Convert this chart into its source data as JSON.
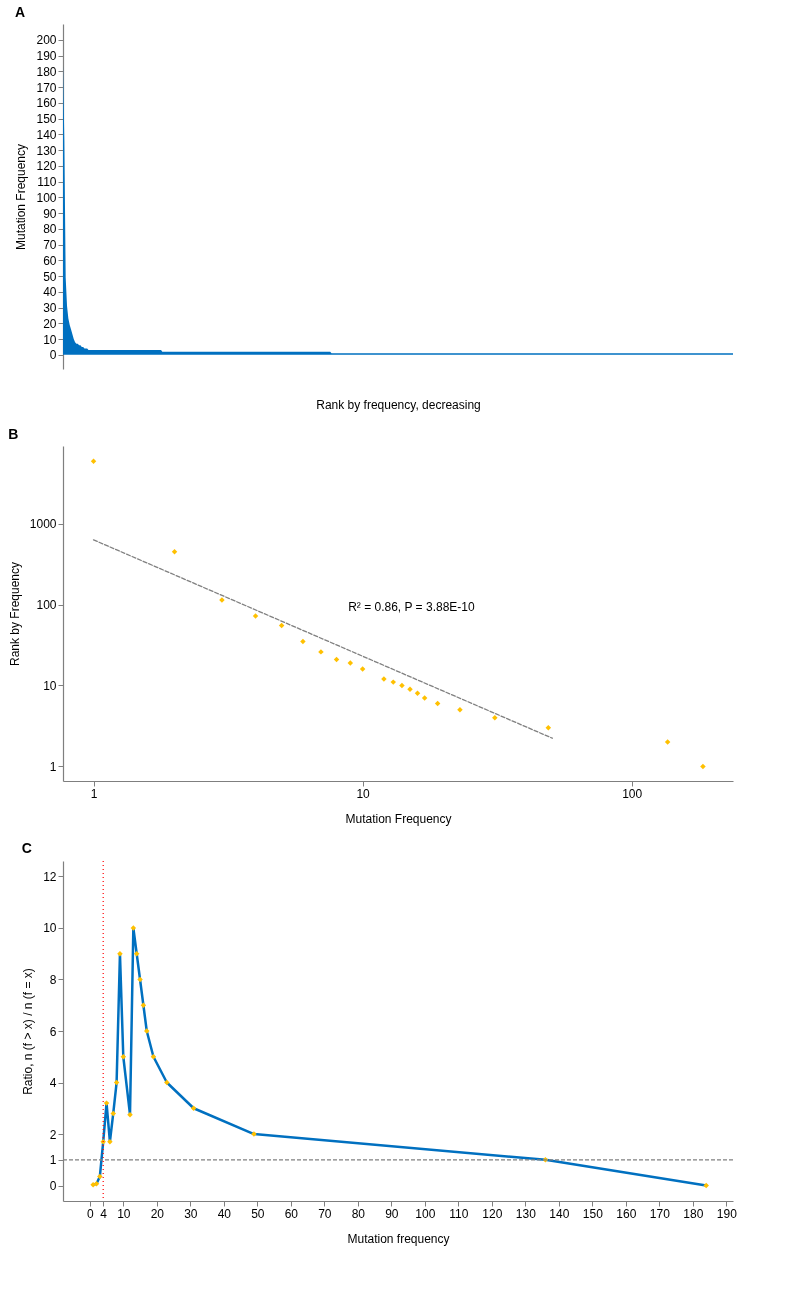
{
  "chart_data": [
    {
      "title": "A",
      "type": "area",
      "xlabel": "Rank by frequency, decreasing",
      "ylabel": "Mutation Frequency",
      "color": "#0070c0",
      "tick_labels": "y",
      "categories": [
        null,
        null,
        null,
        null,
        null,
        null,
        null,
        null,
        null,
        null,
        null,
        null,
        null,
        null,
        null,
        null,
        null,
        null,
        null,
        null,
        null,
        null,
        null,
        null,
        null,
        null,
        null,
        null,
        null,
        null,
        null,
        null,
        null,
        null,
        null,
        null,
        null,
        null,
        null,
        null,
        null,
        null,
        null,
        null,
        null,
        null,
        null,
        null,
        null,
        null,
        null,
        null,
        null,
        null,
        null,
        null,
        null,
        null,
        null,
        null,
        null,
        null,
        null,
        null,
        null,
        null,
        null,
        null,
        null,
        null,
        null,
        null,
        null,
        null,
        null,
        null,
        null,
        null,
        null,
        null,
        null,
        null,
        null,
        null,
        null,
        null,
        null,
        null,
        null,
        null,
        null,
        null,
        null,
        null,
        null,
        null,
        null,
        null,
        null,
        null,
        null,
        null,
        null,
        null,
        null,
        null,
        null,
        null,
        null,
        null,
        null,
        null,
        null,
        null,
        null,
        null,
        null,
        null,
        null,
        null,
        null,
        null,
        null,
        null,
        null,
        null,
        null,
        null,
        null,
        null,
        null,
        null,
        null,
        null,
        null,
        null,
        null,
        null,
        null,
        null,
        null,
        null,
        null,
        null,
        null,
        null,
        null,
        null,
        null,
        null,
        null,
        null,
        null,
        null,
        null,
        null,
        null,
        null,
        null,
        null,
        null,
        null,
        null,
        null,
        null,
        null,
        null,
        null,
        null,
        null,
        null,
        null,
        null,
        null,
        null,
        null,
        null,
        null,
        null,
        null,
        null,
        null,
        null,
        null,
        null,
        null,
        null,
        null,
        null,
        null,
        null,
        null,
        null,
        null,
        null,
        null,
        null,
        null,
        null,
        null,
        null,
        null,
        null,
        null,
        null,
        null,
        null,
        null,
        null,
        null,
        null,
        null,
        null,
        null,
        null,
        null,
        null,
        null,
        null,
        null,
        null,
        null,
        null,
        null,
        null,
        null,
        null,
        null,
        null,
        null,
        null,
        null,
        null,
        null,
        null,
        null,
        null,
        null,
        null,
        null,
        null,
        null,
        null,
        null,
        null,
        null,
        null,
        null,
        null,
        null,
        null,
        null,
        null,
        null,
        null,
        null,
        null,
        null,
        null,
        null,
        null,
        null,
        null,
        null,
        null,
        null,
        null,
        null,
        null,
        null,
        null,
        null,
        null,
        null,
        null,
        null,
        null,
        null,
        null,
        null,
        null,
        null,
        null,
        null,
        null,
        null,
        null,
        null,
        null,
        null,
        null,
        null,
        null,
        null,
        null,
        null,
        null,
        null,
        null,
        null,
        null,
        null,
        null,
        null,
        null,
        null,
        null,
        null,
        null,
        null,
        null,
        null,
        null,
        null,
        null,
        null,
        null,
        null,
        null,
        null,
        null,
        null,
        null,
        null,
        null,
        null,
        null,
        null,
        null,
        null,
        null,
        null,
        null,
        null,
        null,
        null,
        null,
        null,
        null,
        null,
        null,
        null,
        null,
        null,
        null,
        null,
        null,
        null,
        null,
        null,
        null,
        null,
        null,
        null,
        null,
        null,
        null,
        null,
        null,
        null,
        null,
        null,
        null,
        null,
        null,
        null,
        null,
        null,
        null,
        null,
        null,
        null,
        null,
        null,
        null,
        null,
        null,
        null,
        null,
        null,
        null,
        null,
        null,
        null,
        null,
        null,
        null,
        null,
        null,
        null,
        null,
        null,
        null,
        null,
        null,
        null,
        null,
        null,
        null,
        null,
        null,
        null,
        null,
        null,
        null,
        null,
        null,
        null,
        null,
        null,
        null,
        null,
        null,
        null,
        null,
        null,
        null,
        null,
        null,
        null,
        null,
        null,
        null,
        null,
        null,
        null,
        null,
        null,
        null,
        null,
        null,
        null,
        null,
        null,
        null,
        null,
        null,
        null,
        null,
        null,
        null,
        null,
        null,
        null,
        null,
        null,
        null,
        null,
        null,
        null,
        null,
        null,
        null,
        null,
        null,
        null,
        null,
        null,
        null,
        null,
        null,
        null,
        null,
        null,
        null,
        null,
        null,
        null,
        null,
        null,
        null,
        null,
        null,
        null,
        null,
        null,
        null,
        null,
        null,
        null,
        null,
        null,
        null,
        null,
        null,
        null,
        null,
        null,
        null,
        null,
        null,
        null,
        null,
        null,
        null,
        null,
        null,
        null,
        null,
        null
      ],
      "values": [
        184,
        136,
        49,
        31,
        23,
        19,
        16,
        13,
        10,
        8,
        7,
        7,
        6,
        6,
        5,
        5,
        4,
        4,
        4,
        3,
        3,
        3,
        3,
        3,
        3,
        3,
        3,
        3,
        3,
        3,
        3,
        3,
        3,
        3,
        3,
        3,
        3,
        3,
        3,
        3,
        3,
        3,
        3,
        3,
        3,
        3,
        3,
        3,
        3,
        3,
        3,
        3,
        3,
        3,
        3,
        3,
        3,
        3,
        3,
        3,
        3,
        3,
        3,
        3,
        3,
        3,
        3,
        3,
        3,
        3,
        3,
        3,
        3,
        3,
        2,
        2,
        2,
        2,
        2,
        2,
        2,
        2,
        2,
        2,
        2,
        2,
        2,
        2,
        2,
        2,
        2,
        2,
        2,
        2,
        2,
        2,
        2,
        2,
        2,
        2,
        2,
        2,
        2,
        2,
        2,
        2,
        2,
        2,
        2,
        2,
        2,
        2,
        2,
        2,
        2,
        2,
        2,
        2,
        2,
        2,
        2,
        2,
        2,
        2,
        2,
        2,
        2,
        2,
        2,
        2,
        2,
        2,
        2,
        2,
        2,
        2,
        2,
        2,
        2,
        2,
        2,
        2,
        2,
        2,
        2,
        2,
        2,
        2,
        2,
        2,
        2,
        2,
        2,
        2,
        2,
        2,
        2,
        2,
        2,
        2,
        2,
        2,
        2,
        2,
        2,
        2,
        2,
        2,
        2,
        2,
        2,
        2,
        2,
        2,
        2,
        2,
        2,
        2,
        2,
        2,
        2,
        2,
        2,
        2,
        2,
        2,
        2,
        2,
        2,
        2,
        2,
        2,
        2,
        2,
        2,
        2,
        2,
        2,
        2,
        2,
        1,
        1,
        1,
        1,
        1,
        1,
        1,
        1,
        1,
        1,
        1,
        1,
        1,
        1,
        1,
        1,
        1,
        1,
        1,
        1,
        1,
        1,
        1,
        1,
        1,
        1,
        1,
        1,
        1,
        1,
        1,
        1,
        1,
        1,
        1,
        1,
        1,
        1,
        1,
        1,
        1,
        1,
        1,
        1,
        1,
        1,
        1,
        1,
        1,
        1,
        1,
        1,
        1,
        1,
        1,
        1,
        1,
        1,
        1,
        1,
        1,
        1,
        1,
        1,
        1,
        1,
        1,
        1,
        1,
        1,
        1,
        1,
        1,
        1,
        1,
        1,
        1,
        1,
        1,
        1,
        1,
        1,
        1,
        1,
        1,
        1,
        1,
        1,
        1,
        1,
        1,
        1,
        1,
        1,
        1,
        1,
        1,
        1,
        1,
        1,
        1,
        1,
        1,
        1,
        1,
        1,
        1,
        1,
        1,
        1,
        1,
        1,
        1,
        1,
        1,
        1,
        1,
        1,
        1,
        1,
        1,
        1,
        1,
        1,
        1,
        1,
        1,
        1,
        1,
        1,
        1,
        1,
        1,
        1,
        1,
        1,
        1,
        1,
        1,
        1,
        1,
        1,
        1,
        1,
        1,
        1,
        1,
        1,
        1,
        1,
        1,
        1,
        1,
        1,
        1,
        1,
        1,
        1,
        1,
        1,
        1,
        1,
        1,
        1,
        1,
        1,
        1,
        1,
        1,
        1,
        1,
        1,
        1,
        1,
        1,
        1,
        1,
        1,
        1,
        1,
        1,
        1,
        1,
        1,
        1,
        1,
        1,
        1,
        1,
        1,
        1,
        1,
        1,
        1,
        1,
        1,
        1,
        1,
        1,
        1,
        1,
        1,
        1,
        1,
        1,
        1,
        1,
        1,
        1,
        1,
        1,
        1,
        1,
        1,
        1,
        1,
        1,
        1,
        1,
        1,
        1,
        1,
        1,
        1,
        1,
        1,
        1,
        1,
        1,
        1,
        1,
        1,
        1,
        1,
        1,
        1,
        1,
        1,
        1,
        1,
        1,
        1,
        1,
        1,
        1,
        1,
        1,
        1,
        1,
        1,
        1,
        1,
        1,
        1,
        1,
        1,
        1,
        1,
        1,
        1,
        1,
        1,
        1,
        1,
        1,
        1,
        1,
        1,
        1,
        1,
        1,
        1,
        1,
        1,
        1,
        1,
        1,
        1,
        1,
        1,
        1,
        1,
        1,
        1,
        1,
        1,
        1,
        1,
        1,
        1,
        1,
        1,
        1,
        1,
        1,
        1,
        1,
        1,
        1,
        1
      ],
      "ylim": [
        -9,
        210
      ],
      "yticks": [
        0,
        10,
        20,
        30,
        40,
        50,
        60,
        70,
        80,
        90,
        100,
        110,
        120,
        130,
        140,
        150,
        160,
        170,
        180,
        190,
        200
      ]
    },
    {
      "title": "B",
      "type": "scatter",
      "log": "xy",
      "xlabel": "Mutation Frequency",
      "ylabel": "Rank by Frequency",
      "xlim": [
        0.77,
        238
      ],
      "ylim": [
        0.66,
        9100
      ],
      "xticks": [
        1,
        10,
        100
      ],
      "yticks": [
        1,
        10,
        100,
        1000
      ],
      "annotations": [
        "R² = 0.86, P = 3.88E-10"
      ],
      "series": [
        {
          "marker": "diamond",
          "color": "#ffc000",
          "x": [
            1,
            2,
            3,
            4,
            5,
            6,
            7,
            8,
            9,
            10,
            12,
            13,
            14,
            15,
            16,
            17,
            19,
            23,
            31,
            49,
            136,
            184
          ],
          "values": [
            5900,
            450,
            114,
            72,
            55,
            35,
            26,
            21,
            19,
            16,
            12,
            11,
            10,
            9,
            8,
            7,
            6,
            5,
            4,
            3,
            2,
            1
          ]
        },
        {
          "type": "line",
          "line_style": "dashed",
          "color": "#808080",
          "x": [
            1,
            50.7
          ],
          "values": [
            630,
            2.23
          ]
        }
      ]
    },
    {
      "title": "C",
      "type": "line",
      "xlabel": "Mutation frequency",
      "ylabel": "Ratio, n (f > x) / n (f = x)",
      "xlim": [
        -8,
        192
      ],
      "ylim": [
        -0.6,
        12.6
      ],
      "xticks": [
        0,
        4,
        10,
        20,
        30,
        40,
        50,
        60,
        70,
        80,
        90,
        100,
        110,
        120,
        130,
        140,
        150,
        160,
        170,
        180,
        190
      ],
      "yticks": [
        0,
        1,
        2,
        4,
        6,
        8,
        10,
        12
      ],
      "series": [
        {
          "color": "#0070c0",
          "x": [
            1,
            2,
            3,
            4,
            5,
            6,
            7,
            8,
            9,
            10,
            12,
            13,
            14,
            15,
            16,
            17,
            19,
            23,
            31,
            49,
            136,
            184
          ],
          "values": [
            0.03,
            0.07,
            0.35,
            1.7,
            3.2,
            1.7,
            2.8,
            4,
            9,
            5,
            2.75,
            10,
            9,
            8,
            7,
            6,
            5,
            4,
            3,
            2,
            1,
            0
          ]
        },
        {
          "type": "scatter",
          "marker": "diamond",
          "color": "#ffc000",
          "x": [
            1,
            2,
            3,
            4,
            5,
            6,
            7,
            8,
            9,
            10,
            12,
            13,
            14,
            15,
            16,
            17,
            19,
            23,
            31,
            49,
            136,
            184
          ],
          "values": [
            0.03,
            0.07,
            0.35,
            1.7,
            3.2,
            1.7,
            2.8,
            4,
            9,
            5,
            2.75,
            10,
            9,
            8,
            7,
            6,
            5,
            4,
            3,
            2,
            1,
            0
          ]
        }
      ],
      "ref_lines": [
        {
          "axis": "x",
          "value": 4,
          "color": "#ff0000",
          "line_style": "dotted"
        },
        {
          "axis": "y",
          "value": 1,
          "color": "#808080",
          "line_style": "dashed"
        }
      ]
    }
  ]
}
